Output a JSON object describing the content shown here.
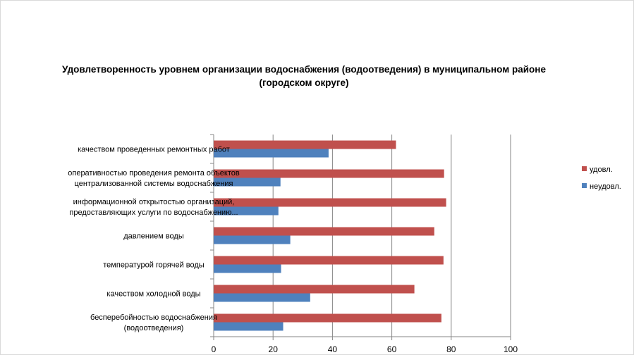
{
  "chart_data": {
    "type": "bar",
    "orientation": "horizontal",
    "title": "Удовлетворенность уровнем организации водоснабжения (водоотведения) в муниципальном районе (городском округе)",
    "categories": [
      [
        "качеством проведенных  ремонтных работ"
      ],
      [
        "оперативностью  проведения  ремонта объектов",
        "централизованной системы водоснабжения"
      ],
      [
        "информационной открытостью организаций,",
        "предоставляющих услуги по водоснабжению..."
      ],
      [
        "давлением  воды"
      ],
      [
        "температурой горячей воды"
      ],
      [
        "качеством холодной воды"
      ],
      [
        "бесперебойностью  водоснабжения",
        "(водоотведения)"
      ]
    ],
    "series": [
      {
        "name": "удовл.",
        "color": "#c0504d",
        "values": [
          61.4,
          77.6,
          78.3,
          74.3,
          77.4,
          67.6,
          76.7
        ]
      },
      {
        "name": "неудовл.",
        "color": "#4f81bd",
        "values": [
          38.7,
          22.5,
          21.8,
          25.8,
          22.7,
          32.5,
          23.4
        ]
      }
    ],
    "xlim": [
      0,
      100
    ],
    "xticks": [
      "0",
      "20",
      "40",
      "60",
      "80",
      "100"
    ],
    "grid": true,
    "legend": "right"
  }
}
